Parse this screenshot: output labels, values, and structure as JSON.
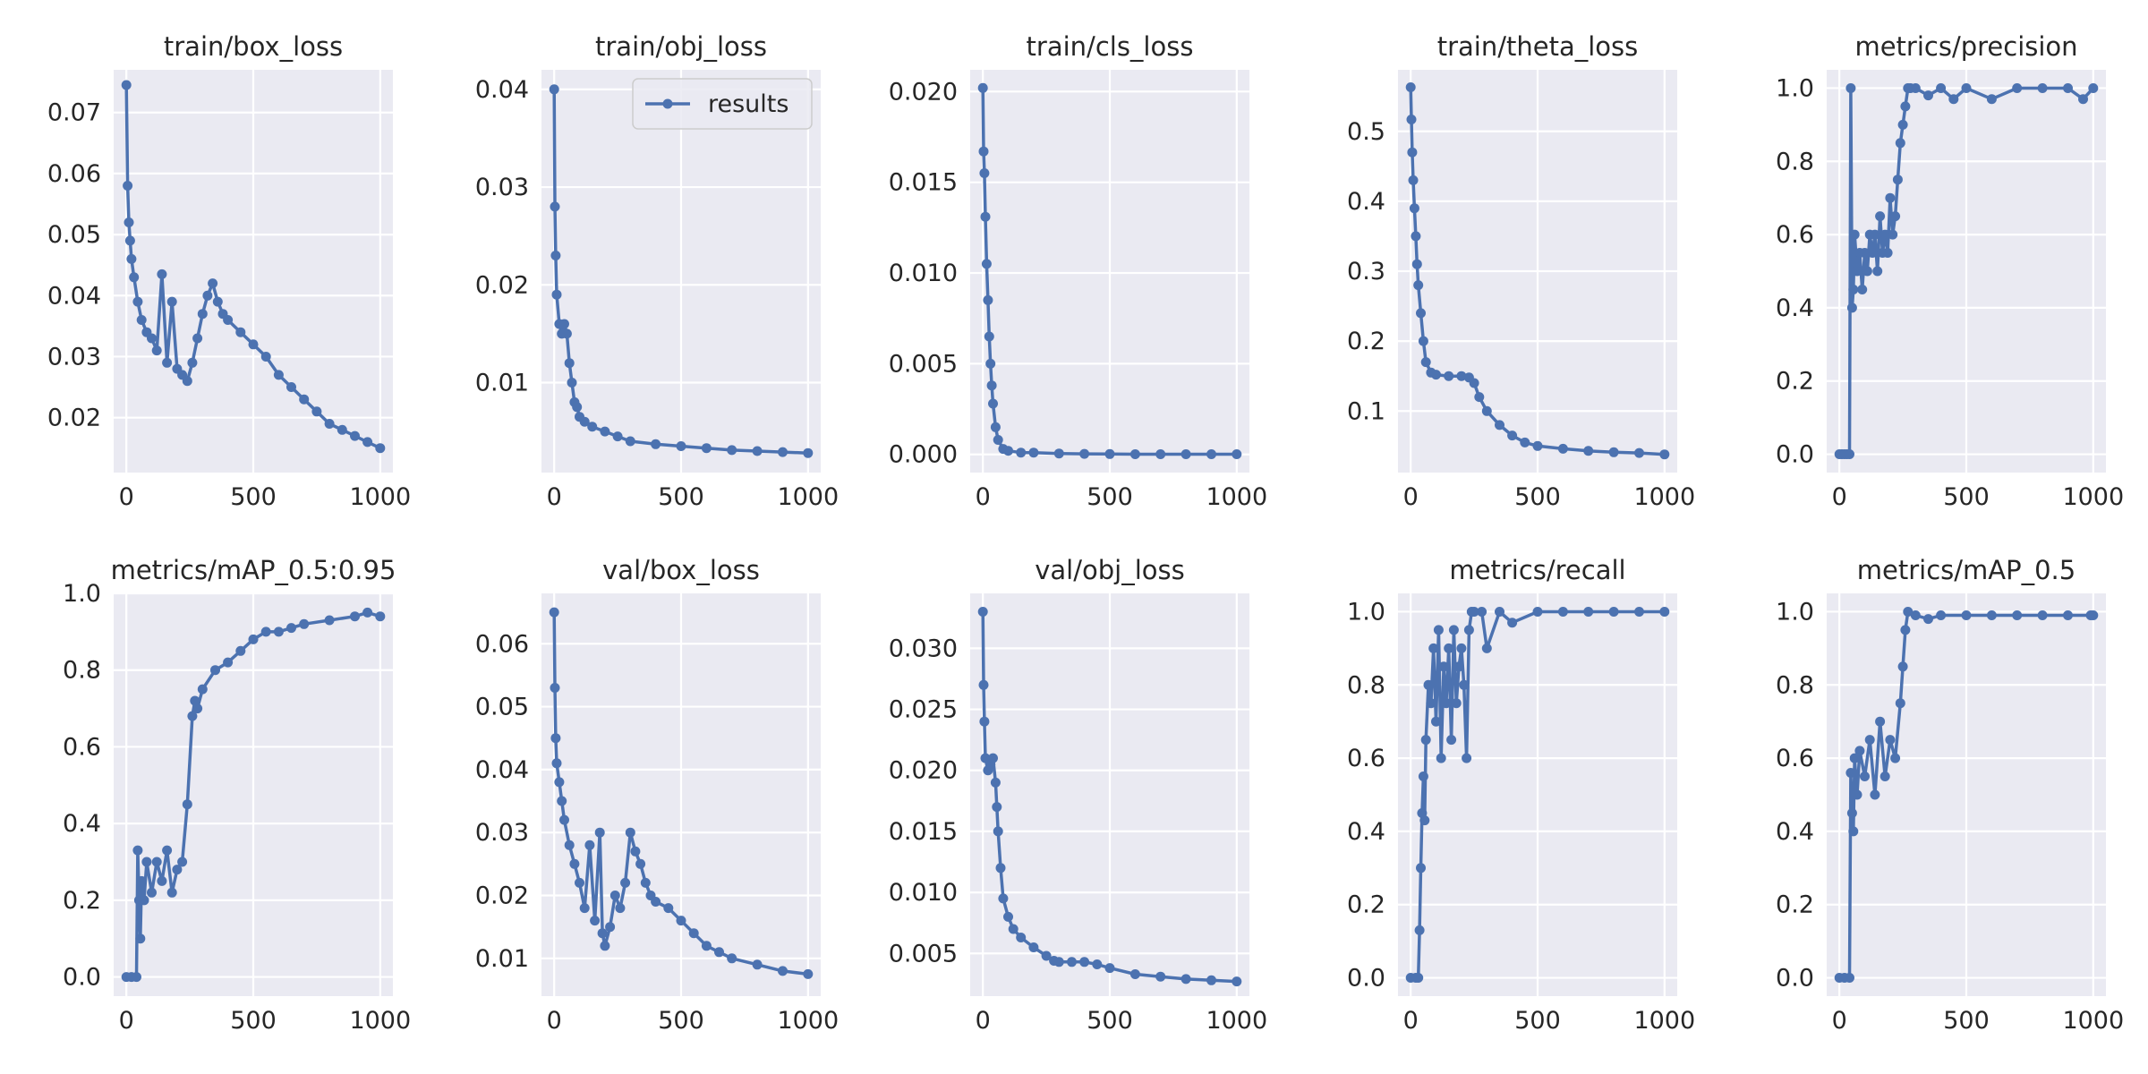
{
  "chart_data": [
    {
      "type": "line",
      "title": "train/box_loss",
      "xlabel": "",
      "ylabel": "",
      "xlim": [
        -50,
        1050
      ],
      "ylim": [
        0.011,
        0.077
      ],
      "xticks": [
        0,
        500,
        1000
      ],
      "xtick_labels": [
        "0",
        "500",
        "1000"
      ],
      "yticks": [
        0.02,
        0.03,
        0.04,
        0.05,
        0.06,
        0.07
      ],
      "ytick_labels": [
        "0.02",
        "0.03",
        "0.04",
        "0.05",
        "0.06",
        "0.07"
      ],
      "grid": true,
      "series": [
        {
          "name": "results",
          "color": "#4c72b0",
          "x": [
            0,
            5,
            10,
            15,
            20,
            30,
            45,
            60,
            80,
            100,
            120,
            140,
            160,
            180,
            200,
            220,
            240,
            260,
            280,
            300,
            320,
            340,
            360,
            380,
            400,
            450,
            500,
            550,
            600,
            650,
            700,
            750,
            800,
            850,
            900,
            950,
            1000
          ],
          "values": [
            0.0745,
            0.058,
            0.052,
            0.049,
            0.046,
            0.043,
            0.039,
            0.036,
            0.034,
            0.033,
            0.031,
            0.0435,
            0.029,
            0.039,
            0.028,
            0.027,
            0.026,
            0.029,
            0.033,
            0.037,
            0.04,
            0.042,
            0.039,
            0.037,
            0.036,
            0.034,
            0.032,
            0.03,
            0.027,
            0.025,
            0.023,
            0.021,
            0.019,
            0.018,
            0.017,
            0.016,
            0.015
          ]
        }
      ]
    },
    {
      "type": "line",
      "title": "train/obj_loss",
      "xlabel": "",
      "ylabel": "",
      "xlim": [
        -50,
        1050
      ],
      "ylim": [
        0.0008,
        0.042
      ],
      "xticks": [
        0,
        500,
        1000
      ],
      "xtick_labels": [
        "0",
        "500",
        "1000"
      ],
      "yticks": [
        0.01,
        0.02,
        0.03,
        0.04
      ],
      "ytick_labels": [
        "0.01",
        "0.02",
        "0.03",
        "0.04"
      ],
      "grid": true,
      "legend": {
        "placement": "top-right",
        "entries": [
          "results"
        ]
      },
      "series": [
        {
          "name": "results",
          "color": "#4c72b0",
          "x": [
            0,
            3,
            6,
            10,
            20,
            30,
            40,
            50,
            60,
            70,
            80,
            90,
            100,
            120,
            150,
            200,
            250,
            300,
            400,
            500,
            600,
            700,
            800,
            900,
            1000
          ],
          "values": [
            0.04,
            0.028,
            0.023,
            0.019,
            0.016,
            0.015,
            0.016,
            0.015,
            0.012,
            0.01,
            0.008,
            0.0075,
            0.0065,
            0.006,
            0.0055,
            0.005,
            0.0045,
            0.004,
            0.0037,
            0.0035,
            0.0033,
            0.0031,
            0.003,
            0.0029,
            0.0028
          ]
        }
      ]
    },
    {
      "type": "line",
      "title": "train/cls_loss",
      "xlabel": "",
      "ylabel": "",
      "xlim": [
        -50,
        1050
      ],
      "ylim": [
        -0.001,
        0.0212
      ],
      "xticks": [
        0,
        500,
        1000
      ],
      "xtick_labels": [
        "0",
        "500",
        "1000"
      ],
      "yticks": [
        0.0,
        0.005,
        0.01,
        0.015,
        0.02
      ],
      "ytick_labels": [
        "0.000",
        "0.005",
        "0.010",
        "0.015",
        "0.020"
      ],
      "grid": true,
      "series": [
        {
          "name": "results",
          "color": "#4c72b0",
          "x": [
            0,
            3,
            6,
            10,
            15,
            20,
            25,
            30,
            35,
            40,
            50,
            60,
            80,
            100,
            150,
            200,
            300,
            400,
            500,
            600,
            700,
            800,
            900,
            1000
          ],
          "values": [
            0.0202,
            0.0167,
            0.0155,
            0.0131,
            0.0105,
            0.0085,
            0.0065,
            0.005,
            0.0038,
            0.0028,
            0.0015,
            0.0008,
            0.0003,
            0.0002,
            0.0001,
            0.0001,
            5e-05,
            3e-05,
            2e-05,
            1e-05,
            1e-05,
            1e-05,
            1e-05,
            1e-05
          ]
        }
      ]
    },
    {
      "type": "line",
      "title": "train/theta_loss",
      "xlabel": "",
      "ylabel": "",
      "xlim": [
        -50,
        1050
      ],
      "ylim": [
        0.012,
        0.588
      ],
      "xticks": [
        0,
        500,
        1000
      ],
      "xtick_labels": [
        "0",
        "500",
        "1000"
      ],
      "yticks": [
        0.1,
        0.2,
        0.3,
        0.4,
        0.5
      ],
      "ytick_labels": [
        "0.1",
        "0.2",
        "0.3",
        "0.4",
        "0.5"
      ],
      "grid": true,
      "series": [
        {
          "name": "results",
          "color": "#4c72b0",
          "x": [
            0,
            3,
            6,
            10,
            15,
            20,
            25,
            30,
            40,
            50,
            60,
            80,
            100,
            150,
            200,
            230,
            250,
            270,
            300,
            350,
            400,
            450,
            500,
            600,
            700,
            800,
            900,
            1000
          ],
          "values": [
            0.563,
            0.517,
            0.47,
            0.43,
            0.39,
            0.35,
            0.31,
            0.28,
            0.24,
            0.2,
            0.17,
            0.155,
            0.152,
            0.15,
            0.15,
            0.148,
            0.14,
            0.12,
            0.1,
            0.08,
            0.065,
            0.055,
            0.05,
            0.046,
            0.043,
            0.041,
            0.04,
            0.038
          ]
        }
      ]
    },
    {
      "type": "line",
      "title": "metrics/precision",
      "xlabel": "",
      "ylabel": "",
      "xlim": [
        -50,
        1050
      ],
      "ylim": [
        -0.05,
        1.05
      ],
      "xticks": [
        0,
        500,
        1000
      ],
      "xtick_labels": [
        "0",
        "500",
        "1000"
      ],
      "yticks": [
        0.0,
        0.2,
        0.4,
        0.6,
        0.8,
        1.0
      ],
      "ytick_labels": [
        "0.0",
        "0.2",
        "0.4",
        "0.6",
        "0.8",
        "1.0"
      ],
      "grid": true,
      "series": [
        {
          "name": "results",
          "color": "#4c72b0",
          "x": [
            0,
            10,
            20,
            30,
            40,
            45,
            50,
            55,
            60,
            70,
            80,
            90,
            100,
            110,
            120,
            130,
            140,
            150,
            160,
            170,
            180,
            190,
            200,
            210,
            220,
            230,
            240,
            250,
            260,
            270,
            280,
            300,
            350,
            400,
            450,
            500,
            600,
            700,
            800,
            900,
            960,
            1000
          ],
          "values": [
            0.0,
            0.0,
            0.0,
            0.0,
            0.0,
            1.0,
            0.4,
            0.45,
            0.6,
            0.5,
            0.55,
            0.45,
            0.55,
            0.5,
            0.6,
            0.55,
            0.6,
            0.5,
            0.65,
            0.55,
            0.6,
            0.55,
            0.7,
            0.6,
            0.65,
            0.75,
            0.85,
            0.9,
            0.95,
            1.0,
            1.0,
            1.0,
            0.98,
            1.0,
            0.97,
            1.0,
            0.97,
            1.0,
            1.0,
            1.0,
            0.97,
            1.0
          ]
        }
      ]
    },
    {
      "type": "line",
      "title": "metrics/mAP_0.5:0.95",
      "xlabel": "",
      "ylabel": "",
      "xlim": [
        -50,
        1050
      ],
      "ylim": [
        -0.05,
        1.0
      ],
      "xticks": [
        0,
        500,
        1000
      ],
      "xtick_labels": [
        "0",
        "500",
        "1000"
      ],
      "yticks": [
        0.0,
        0.2,
        0.4,
        0.6,
        0.8,
        1.0
      ],
      "ytick_labels": [
        "0.0",
        "0.2",
        "0.4",
        "0.6",
        "0.8",
        "1.0"
      ],
      "grid": true,
      "series": [
        {
          "name": "results",
          "color": "#4c72b0",
          "x": [
            0,
            20,
            40,
            45,
            50,
            55,
            60,
            70,
            80,
            100,
            120,
            140,
            160,
            180,
            200,
            220,
            240,
            260,
            270,
            280,
            300,
            350,
            400,
            450,
            500,
            550,
            600,
            650,
            700,
            800,
            900,
            950,
            1000
          ],
          "values": [
            0.0,
            0.0,
            0.0,
            0.33,
            0.2,
            0.1,
            0.25,
            0.2,
            0.3,
            0.22,
            0.3,
            0.25,
            0.33,
            0.22,
            0.28,
            0.3,
            0.45,
            0.68,
            0.72,
            0.7,
            0.75,
            0.8,
            0.82,
            0.85,
            0.88,
            0.9,
            0.9,
            0.91,
            0.92,
            0.93,
            0.94,
            0.95,
            0.94
          ]
        }
      ]
    },
    {
      "type": "line",
      "title": "val/box_loss",
      "xlabel": "",
      "ylabel": "",
      "xlim": [
        -50,
        1050
      ],
      "ylim": [
        0.004,
        0.068
      ],
      "xticks": [
        0,
        500,
        1000
      ],
      "xtick_labels": [
        "0",
        "500",
        "1000"
      ],
      "yticks": [
        0.01,
        0.02,
        0.03,
        0.04,
        0.05,
        0.06
      ],
      "ytick_labels": [
        "0.01",
        "0.02",
        "0.03",
        "0.04",
        "0.05",
        "0.06"
      ],
      "grid": true,
      "series": [
        {
          "name": "results",
          "color": "#4c72b0",
          "x": [
            0,
            3,
            6,
            10,
            20,
            30,
            40,
            60,
            80,
            100,
            120,
            140,
            160,
            180,
            190,
            200,
            220,
            240,
            260,
            280,
            300,
            320,
            340,
            360,
            380,
            400,
            450,
            500,
            550,
            600,
            650,
            700,
            800,
            900,
            1000
          ],
          "values": [
            0.065,
            0.053,
            0.045,
            0.041,
            0.038,
            0.035,
            0.032,
            0.028,
            0.025,
            0.022,
            0.018,
            0.028,
            0.016,
            0.03,
            0.014,
            0.012,
            0.015,
            0.02,
            0.018,
            0.022,
            0.03,
            0.027,
            0.025,
            0.022,
            0.02,
            0.019,
            0.018,
            0.016,
            0.014,
            0.012,
            0.011,
            0.01,
            0.009,
            0.008,
            0.0075
          ]
        }
      ]
    },
    {
      "type": "line",
      "title": "val/obj_loss",
      "xlabel": "",
      "ylabel": "",
      "xlim": [
        -50,
        1050
      ],
      "ylim": [
        0.0015,
        0.0345
      ],
      "xticks": [
        0,
        500,
        1000
      ],
      "xtick_labels": [
        "0",
        "500",
        "1000"
      ],
      "yticks": [
        0.005,
        0.01,
        0.015,
        0.02,
        0.025,
        0.03
      ],
      "ytick_labels": [
        "0.005",
        "0.010",
        "0.015",
        "0.020",
        "0.025",
        "0.030"
      ],
      "grid": true,
      "series": [
        {
          "name": "results",
          "color": "#4c72b0",
          "x": [
            0,
            3,
            6,
            10,
            20,
            30,
            40,
            50,
            55,
            60,
            70,
            80,
            100,
            120,
            150,
            200,
            250,
            280,
            300,
            350,
            400,
            450,
            500,
            600,
            700,
            800,
            900,
            1000
          ],
          "values": [
            0.033,
            0.027,
            0.024,
            0.021,
            0.02,
            0.0205,
            0.021,
            0.019,
            0.017,
            0.015,
            0.012,
            0.0095,
            0.008,
            0.007,
            0.0063,
            0.0055,
            0.0048,
            0.0044,
            0.0043,
            0.0043,
            0.0043,
            0.0041,
            0.0038,
            0.0033,
            0.0031,
            0.0029,
            0.0028,
            0.0027
          ]
        }
      ]
    },
    {
      "type": "line",
      "title": "metrics/recall",
      "xlabel": "",
      "ylabel": "",
      "xlim": [
        -50,
        1050
      ],
      "ylim": [
        -0.05,
        1.05
      ],
      "xticks": [
        0,
        500,
        1000
      ],
      "xtick_labels": [
        "0",
        "500",
        "1000"
      ],
      "yticks": [
        0.0,
        0.2,
        0.4,
        0.6,
        0.8,
        1.0
      ],
      "ytick_labels": [
        "0.0",
        "0.2",
        "0.4",
        "0.6",
        "0.8",
        "1.0"
      ],
      "grid": true,
      "series": [
        {
          "name": "results",
          "color": "#4c72b0",
          "x": [
            0,
            20,
            30,
            35,
            40,
            45,
            50,
            55,
            60,
            70,
            80,
            90,
            100,
            110,
            120,
            130,
            140,
            150,
            160,
            170,
            180,
            190,
            200,
            210,
            220,
            230,
            240,
            250,
            280,
            300,
            350,
            400,
            500,
            600,
            700,
            800,
            900,
            1000
          ],
          "values": [
            0.0,
            0.0,
            0.0,
            0.13,
            0.3,
            0.45,
            0.55,
            0.43,
            0.65,
            0.8,
            0.75,
            0.9,
            0.7,
            0.95,
            0.6,
            0.85,
            0.75,
            0.9,
            0.65,
            0.95,
            0.75,
            0.85,
            0.9,
            0.8,
            0.6,
            0.95,
            1.0,
            1.0,
            1.0,
            0.9,
            1.0,
            0.97,
            1.0,
            1.0,
            1.0,
            1.0,
            1.0,
            1.0
          ]
        }
      ]
    },
    {
      "type": "line",
      "title": "metrics/mAP_0.5",
      "xlabel": "",
      "ylabel": "",
      "xlim": [
        -50,
        1050
      ],
      "ylim": [
        -0.05,
        1.05
      ],
      "xticks": [
        0,
        500,
        1000
      ],
      "xtick_labels": [
        "0",
        "500",
        "1000"
      ],
      "yticks": [
        0.0,
        0.2,
        0.4,
        0.6,
        0.8,
        1.0
      ],
      "ytick_labels": [
        "0.0",
        "0.2",
        "0.4",
        "0.6",
        "0.8",
        "1.0"
      ],
      "grid": true,
      "series": [
        {
          "name": "results",
          "color": "#4c72b0",
          "x": [
            0,
            20,
            40,
            45,
            50,
            55,
            60,
            70,
            80,
            100,
            120,
            140,
            160,
            180,
            200,
            220,
            240,
            250,
            260,
            270,
            300,
            350,
            400,
            500,
            600,
            700,
            800,
            900,
            990,
            1000
          ],
          "values": [
            0.0,
            0.0,
            0.0,
            0.56,
            0.45,
            0.4,
            0.6,
            0.5,
            0.62,
            0.55,
            0.65,
            0.5,
            0.7,
            0.55,
            0.65,
            0.6,
            0.75,
            0.85,
            0.95,
            1.0,
            0.99,
            0.98,
            0.99,
            0.99,
            0.99,
            0.99,
            0.99,
            0.99,
            0.99,
            0.99
          ]
        }
      ]
    }
  ]
}
